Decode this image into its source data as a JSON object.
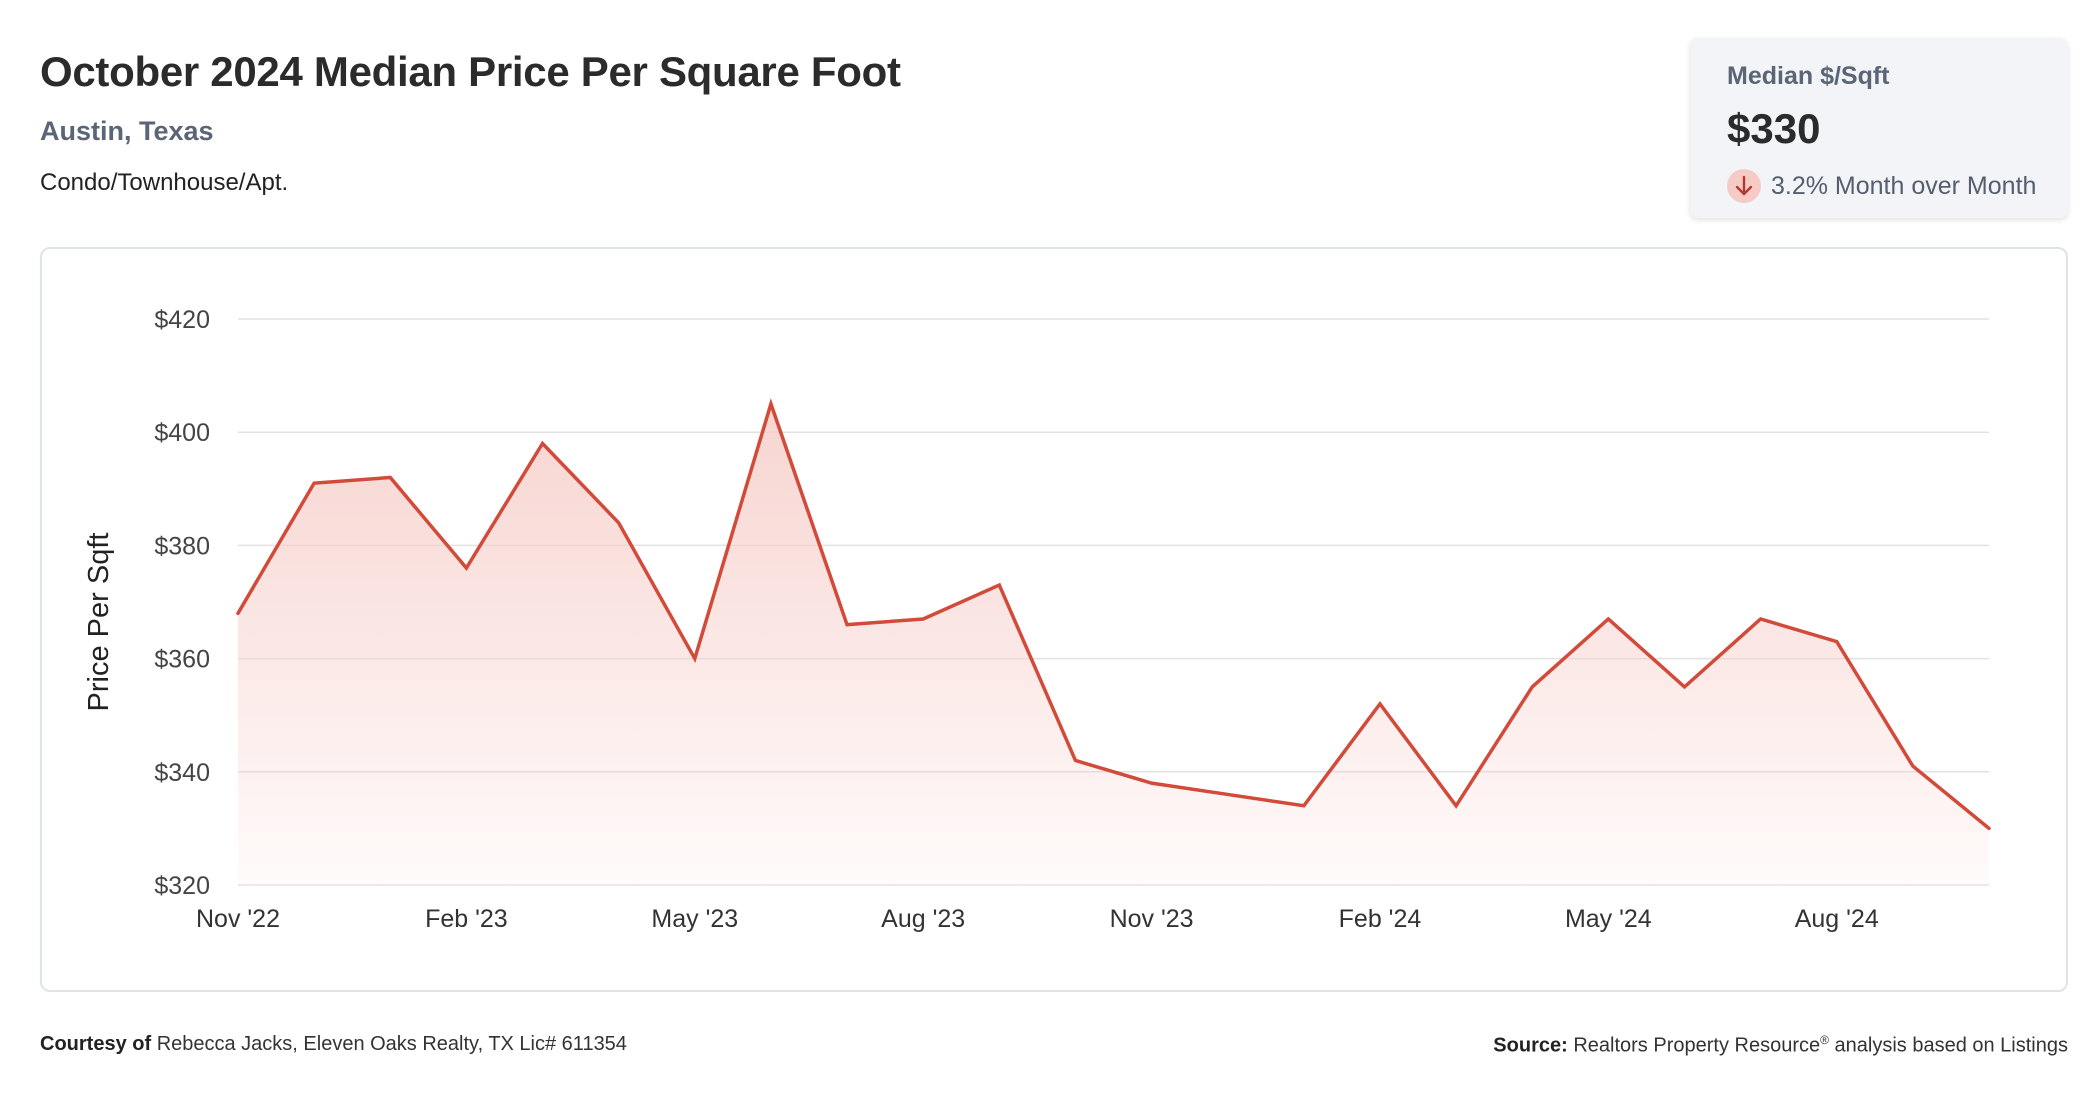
{
  "header": {
    "title": "October 2024 Median Price Per Square Foot",
    "location": "Austin, Texas",
    "property_type": "Condo/Townhouse/Apt."
  },
  "stat_card": {
    "label": "Median $/Sqft",
    "value": "$330",
    "change": "3.2% Month over Month",
    "direction_icon": "arrow-down-icon"
  },
  "footer": {
    "courtesy_label": "Courtesy of",
    "courtesy_text": "Rebecca Jacks, Eleven Oaks Realty, TX Lic# 611354",
    "source_label": "Source:",
    "source_name": "Realtors Property Resource",
    "source_mark": "®",
    "source_text": "analysis based on Listings"
  },
  "colors": {
    "line": "#d24b3a",
    "fill_top": "#f6cdc8",
    "grid": "#e2e2e2",
    "tick_text": "#444444"
  },
  "chart_data": {
    "type": "area",
    "ylabel": "Price Per Sqft",
    "ylim": [
      320,
      420
    ],
    "yticks": [
      320,
      340,
      360,
      380,
      400,
      420
    ],
    "ytick_labels": [
      "$320",
      "$340",
      "$360",
      "$380",
      "$400",
      "$420"
    ],
    "x": [
      "Nov '22",
      "Dec '22",
      "Jan '23",
      "Feb '23",
      "Mar '23",
      "Apr '23",
      "May '23",
      "Jun '23",
      "Jul '23",
      "Aug '23",
      "Sep '23",
      "Oct '23",
      "Nov '23",
      "Dec '23",
      "Jan '24",
      "Feb '24",
      "Mar '24",
      "Apr '24",
      "May '24",
      "Jun '24",
      "Jul '24",
      "Aug '24",
      "Sep '24",
      "Oct '24"
    ],
    "xtick_labels": [
      "Nov '22",
      "Feb '23",
      "May '23",
      "Aug '23",
      "Nov '23",
      "Feb '24",
      "May '24",
      "Aug '24"
    ],
    "series": [
      {
        "values": [
          368,
          391,
          392,
          376,
          398,
          384,
          360,
          405,
          366,
          367,
          373,
          342,
          338,
          336,
          334,
          352,
          334,
          355,
          367,
          355,
          367,
          363,
          341,
          330
        ]
      }
    ],
    "grid": true
  }
}
